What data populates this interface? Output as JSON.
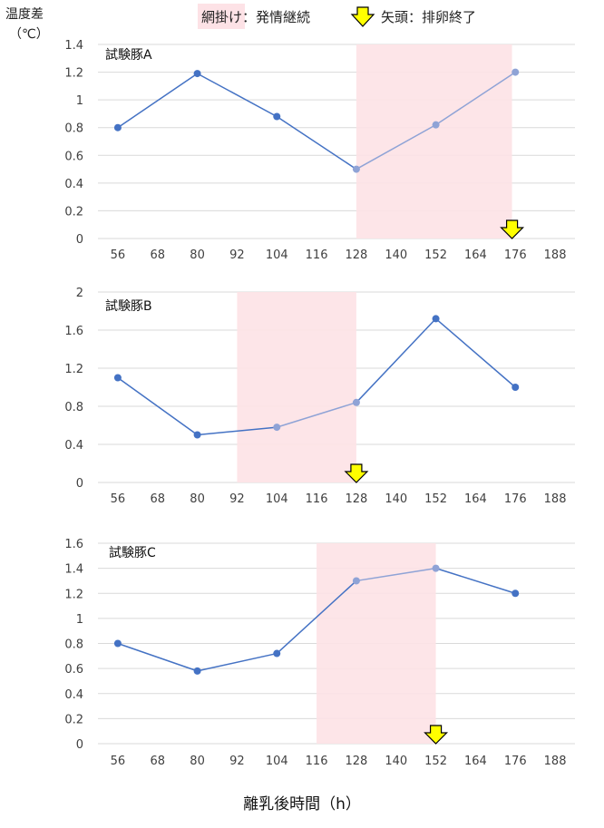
{
  "legend": {
    "shading_label": "網掛け：発情継続",
    "arrow_label": "矢頭：排卵終了"
  },
  "y_axis_title_line1": "温度差",
  "y_axis_title_line2": "（℃）",
  "x_axis_title": "離乳後時間（h）",
  "colors": {
    "line": "#4472C4",
    "line_in_estrus": "#8FA3D6",
    "shading": "#FDE2E6",
    "arrow_fill": "#FFFF00",
    "gridline": "#D9D9D9"
  },
  "chart_data": [
    {
      "type": "line",
      "title": "試験豚A",
      "x": [
        56,
        80,
        104,
        128,
        152,
        176
      ],
      "series": [
        {
          "values": [
            0.8,
            1.19,
            0.88,
            0.5,
            0.82,
            1.2
          ]
        }
      ],
      "xticks": [
        56,
        68,
        80,
        92,
        104,
        116,
        128,
        140,
        152,
        164,
        176,
        188
      ],
      "xlim": [
        50,
        194
      ],
      "ylim": [
        0,
        1.4
      ],
      "yticks": [
        "0",
        "0.2",
        "0.4",
        "0.6",
        "0.8",
        "1",
        "1.2",
        "1.4"
      ],
      "estrus_range": [
        128,
        175
      ],
      "ovulation_end_x": 175,
      "grid": true
    },
    {
      "type": "line",
      "title": "試験豚B",
      "x": [
        56,
        80,
        104,
        128,
        152,
        176
      ],
      "series": [
        {
          "values": [
            1.1,
            0.5,
            0.58,
            0.84,
            1.72,
            1.0
          ]
        }
      ],
      "xticks": [
        56,
        68,
        80,
        92,
        104,
        116,
        128,
        140,
        152,
        164,
        176,
        188
      ],
      "xlim": [
        50,
        194
      ],
      "ylim": [
        0,
        2
      ],
      "yticks": [
        "0",
        "0.4",
        "0.8",
        "1.2",
        "1.6",
        "2"
      ],
      "estrus_range": [
        92,
        128
      ],
      "ovulation_end_x": 128,
      "grid": true
    },
    {
      "type": "line",
      "title": "試験豚C",
      "x": [
        56,
        80,
        104,
        128,
        152,
        176
      ],
      "series": [
        {
          "values": [
            0.8,
            0.58,
            0.72,
            1.3,
            1.4,
            1.2
          ]
        }
      ],
      "xticks": [
        56,
        68,
        80,
        92,
        104,
        116,
        128,
        140,
        152,
        164,
        176,
        188
      ],
      "xlim": [
        50,
        194
      ],
      "ylim": [
        0,
        1.6
      ],
      "yticks": [
        "0",
        "0.2",
        "0.4",
        "0.6",
        "0.8",
        "1",
        "1.2",
        "1.4",
        "1.6"
      ],
      "estrus_range": [
        116,
        152
      ],
      "ovulation_end_x": 152,
      "grid": true
    }
  ]
}
